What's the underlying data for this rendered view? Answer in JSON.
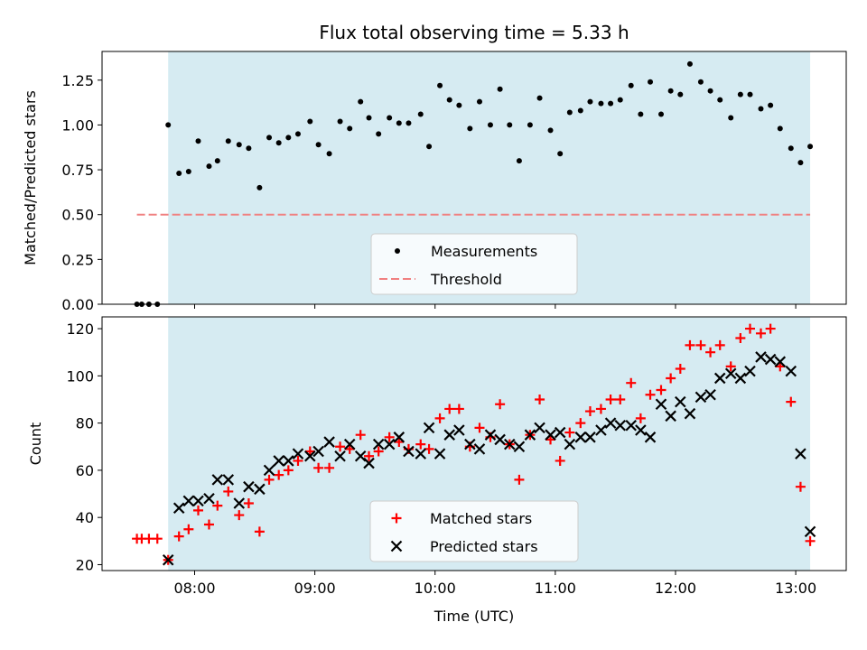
{
  "title": "Flux total observing time = 5.33 h",
  "colors": {
    "observing_span": "#add8e6",
    "threshold": "#f08080",
    "matched": "#ff0000",
    "predicted": "#000000",
    "measurement": "#000000",
    "legend_bg": "#ffffff"
  },
  "chart_data": [
    {
      "type": "scatter",
      "panel": "top",
      "xlabel": "",
      "ylabel": "Matched/Predicted stars",
      "ylim": [
        0,
        1.41
      ],
      "yticks": [
        "0.00",
        "0.25",
        "0.50",
        "0.75",
        "1.00",
        "1.25"
      ],
      "ytick_values": [
        0,
        0.25,
        0.5,
        0.75,
        1.0,
        1.25
      ],
      "shaded_span_x": [
        7.78,
        13.12
      ],
      "threshold": {
        "name": "Threshold",
        "y": 0.5,
        "x_range": [
          7.52,
          13.12
        ]
      },
      "legend": {
        "placement": "lower-center",
        "entries": [
          "Measurements",
          "Threshold"
        ]
      },
      "series": [
        {
          "name": "Measurements",
          "marker": "dot",
          "x": [
            7.52,
            7.56,
            7.62,
            7.69,
            7.78,
            7.87,
            7.95,
            8.03,
            8.12,
            8.19,
            8.28,
            8.37,
            8.45,
            8.54,
            8.62,
            8.7,
            8.78,
            8.86,
            8.96,
            9.03,
            9.12,
            9.21,
            9.29,
            9.38,
            9.45,
            9.53,
            9.62,
            9.7,
            9.78,
            9.88,
            9.95,
            10.04,
            10.12,
            10.2,
            10.29,
            10.37,
            10.46,
            10.54,
            10.62,
            10.7,
            10.79,
            10.87,
            10.96,
            11.04,
            11.12,
            11.21,
            11.29,
            11.38,
            11.46,
            11.54,
            11.63,
            11.71,
            11.79,
            11.88,
            11.96,
            12.04,
            12.12,
            12.21,
            12.29,
            12.37,
            12.46,
            12.54,
            12.62,
            12.71,
            12.79,
            12.87,
            12.96,
            13.04,
            13.12
          ],
          "y": [
            0,
            0,
            0,
            0,
            1.0,
            0.73,
            0.74,
            0.91,
            0.77,
            0.8,
            0.91,
            0.89,
            0.87,
            0.65,
            0.93,
            0.9,
            0.93,
            0.95,
            1.02,
            0.89,
            0.84,
            1.02,
            0.98,
            1.13,
            1.04,
            0.95,
            1.04,
            1.01,
            1.01,
            1.06,
            0.88,
            1.22,
            1.14,
            1.11,
            0.98,
            1.13,
            1.0,
            1.2,
            1.0,
            0.8,
            1.0,
            1.15,
            0.97,
            0.84,
            1.07,
            1.08,
            1.13,
            1.12,
            1.12,
            1.14,
            1.22,
            1.06,
            1.24,
            1.06,
            1.19,
            1.17,
            1.34,
            1.24,
            1.19,
            1.14,
            1.04,
            1.17,
            1.17,
            1.09,
            1.11,
            0.98,
            0.87,
            0.79,
            0.88
          ]
        }
      ]
    },
    {
      "type": "scatter",
      "panel": "bottom",
      "xlabel": "Time (UTC)",
      "ylabel": "Count",
      "xlim": [
        7.23,
        13.42
      ],
      "ylim": [
        17.5,
        125
      ],
      "xticks": [
        "08:00",
        "09:00",
        "10:00",
        "11:00",
        "12:00",
        "13:00"
      ],
      "xtick_values": [
        8,
        9,
        10,
        11,
        12,
        13
      ],
      "yticks": [
        "20",
        "40",
        "60",
        "80",
        "100",
        "120"
      ],
      "ytick_values": [
        20,
        40,
        60,
        80,
        100,
        120
      ],
      "shaded_span_x": [
        7.78,
        13.12
      ],
      "legend": {
        "placement": "lower-center",
        "entries": [
          "Matched stars",
          "Predicted stars"
        ]
      },
      "series": [
        {
          "name": "Matched stars",
          "marker": "plus",
          "x": [
            7.52,
            7.56,
            7.62,
            7.69,
            7.78,
            7.87,
            7.95,
            8.03,
            8.12,
            8.19,
            8.28,
            8.37,
            8.45,
            8.54,
            8.62,
            8.7,
            8.78,
            8.86,
            8.96,
            9.03,
            9.12,
            9.21,
            9.29,
            9.38,
            9.45,
            9.53,
            9.62,
            9.7,
            9.78,
            9.88,
            9.95,
            10.04,
            10.12,
            10.2,
            10.29,
            10.37,
            10.46,
            10.54,
            10.62,
            10.7,
            10.79,
            10.87,
            10.96,
            11.04,
            11.12,
            11.21,
            11.29,
            11.38,
            11.46,
            11.54,
            11.63,
            11.71,
            11.79,
            11.88,
            11.96,
            12.04,
            12.12,
            12.21,
            12.29,
            12.37,
            12.46,
            12.54,
            12.62,
            12.71,
            12.79,
            12.87,
            12.96,
            13.04,
            13.12
          ],
          "y": [
            31,
            31,
            31,
            31,
            22,
            32,
            35,
            43,
            37,
            45,
            51,
            41,
            46,
            34,
            56,
            58,
            60,
            64,
            68,
            61,
            61,
            70,
            69,
            75,
            66,
            68,
            74,
            72,
            69,
            71,
            69,
            82,
            86,
            86,
            70,
            78,
            74,
            88,
            71,
            56,
            75,
            90,
            73,
            64,
            76,
            80,
            85,
            86,
            90,
            90,
            97,
            82,
            92,
            94,
            99,
            103,
            113,
            113,
            110,
            113,
            104,
            116,
            120,
            118,
            120,
            104,
            89,
            53,
            30
          ]
        },
        {
          "name": "Predicted stars",
          "marker": "x",
          "x": [
            7.78,
            7.87,
            7.95,
            8.03,
            8.12,
            8.19,
            8.28,
            8.37,
            8.45,
            8.54,
            8.62,
            8.7,
            8.78,
            8.86,
            8.96,
            9.03,
            9.12,
            9.21,
            9.29,
            9.38,
            9.45,
            9.53,
            9.62,
            9.7,
            9.78,
            9.88,
            9.95,
            10.04,
            10.12,
            10.2,
            10.29,
            10.37,
            10.46,
            10.54,
            10.62,
            10.7,
            10.79,
            10.87,
            10.96,
            11.04,
            11.12,
            11.21,
            11.29,
            11.38,
            11.46,
            11.54,
            11.63,
            11.71,
            11.79,
            11.88,
            11.96,
            12.04,
            12.12,
            12.21,
            12.29,
            12.37,
            12.46,
            12.54,
            12.62,
            12.71,
            12.79,
            12.87,
            12.96,
            13.04,
            13.12
          ],
          "y": [
            22,
            44,
            47,
            47,
            48,
            56,
            56,
            46,
            53,
            52,
            60,
            64,
            64,
            67,
            66,
            68,
            72,
            66,
            71,
            66,
            63,
            71,
            71,
            74,
            68,
            67,
            78,
            67,
            75,
            77,
            71,
            69,
            75,
            73,
            71,
            70,
            75,
            78,
            75,
            76,
            71,
            74,
            74,
            77,
            80,
            79,
            79,
            77,
            74,
            88,
            83,
            89,
            84,
            91,
            92,
            99,
            101,
            99,
            102,
            108,
            107,
            106,
            102,
            67,
            34
          ]
        }
      ]
    }
  ]
}
